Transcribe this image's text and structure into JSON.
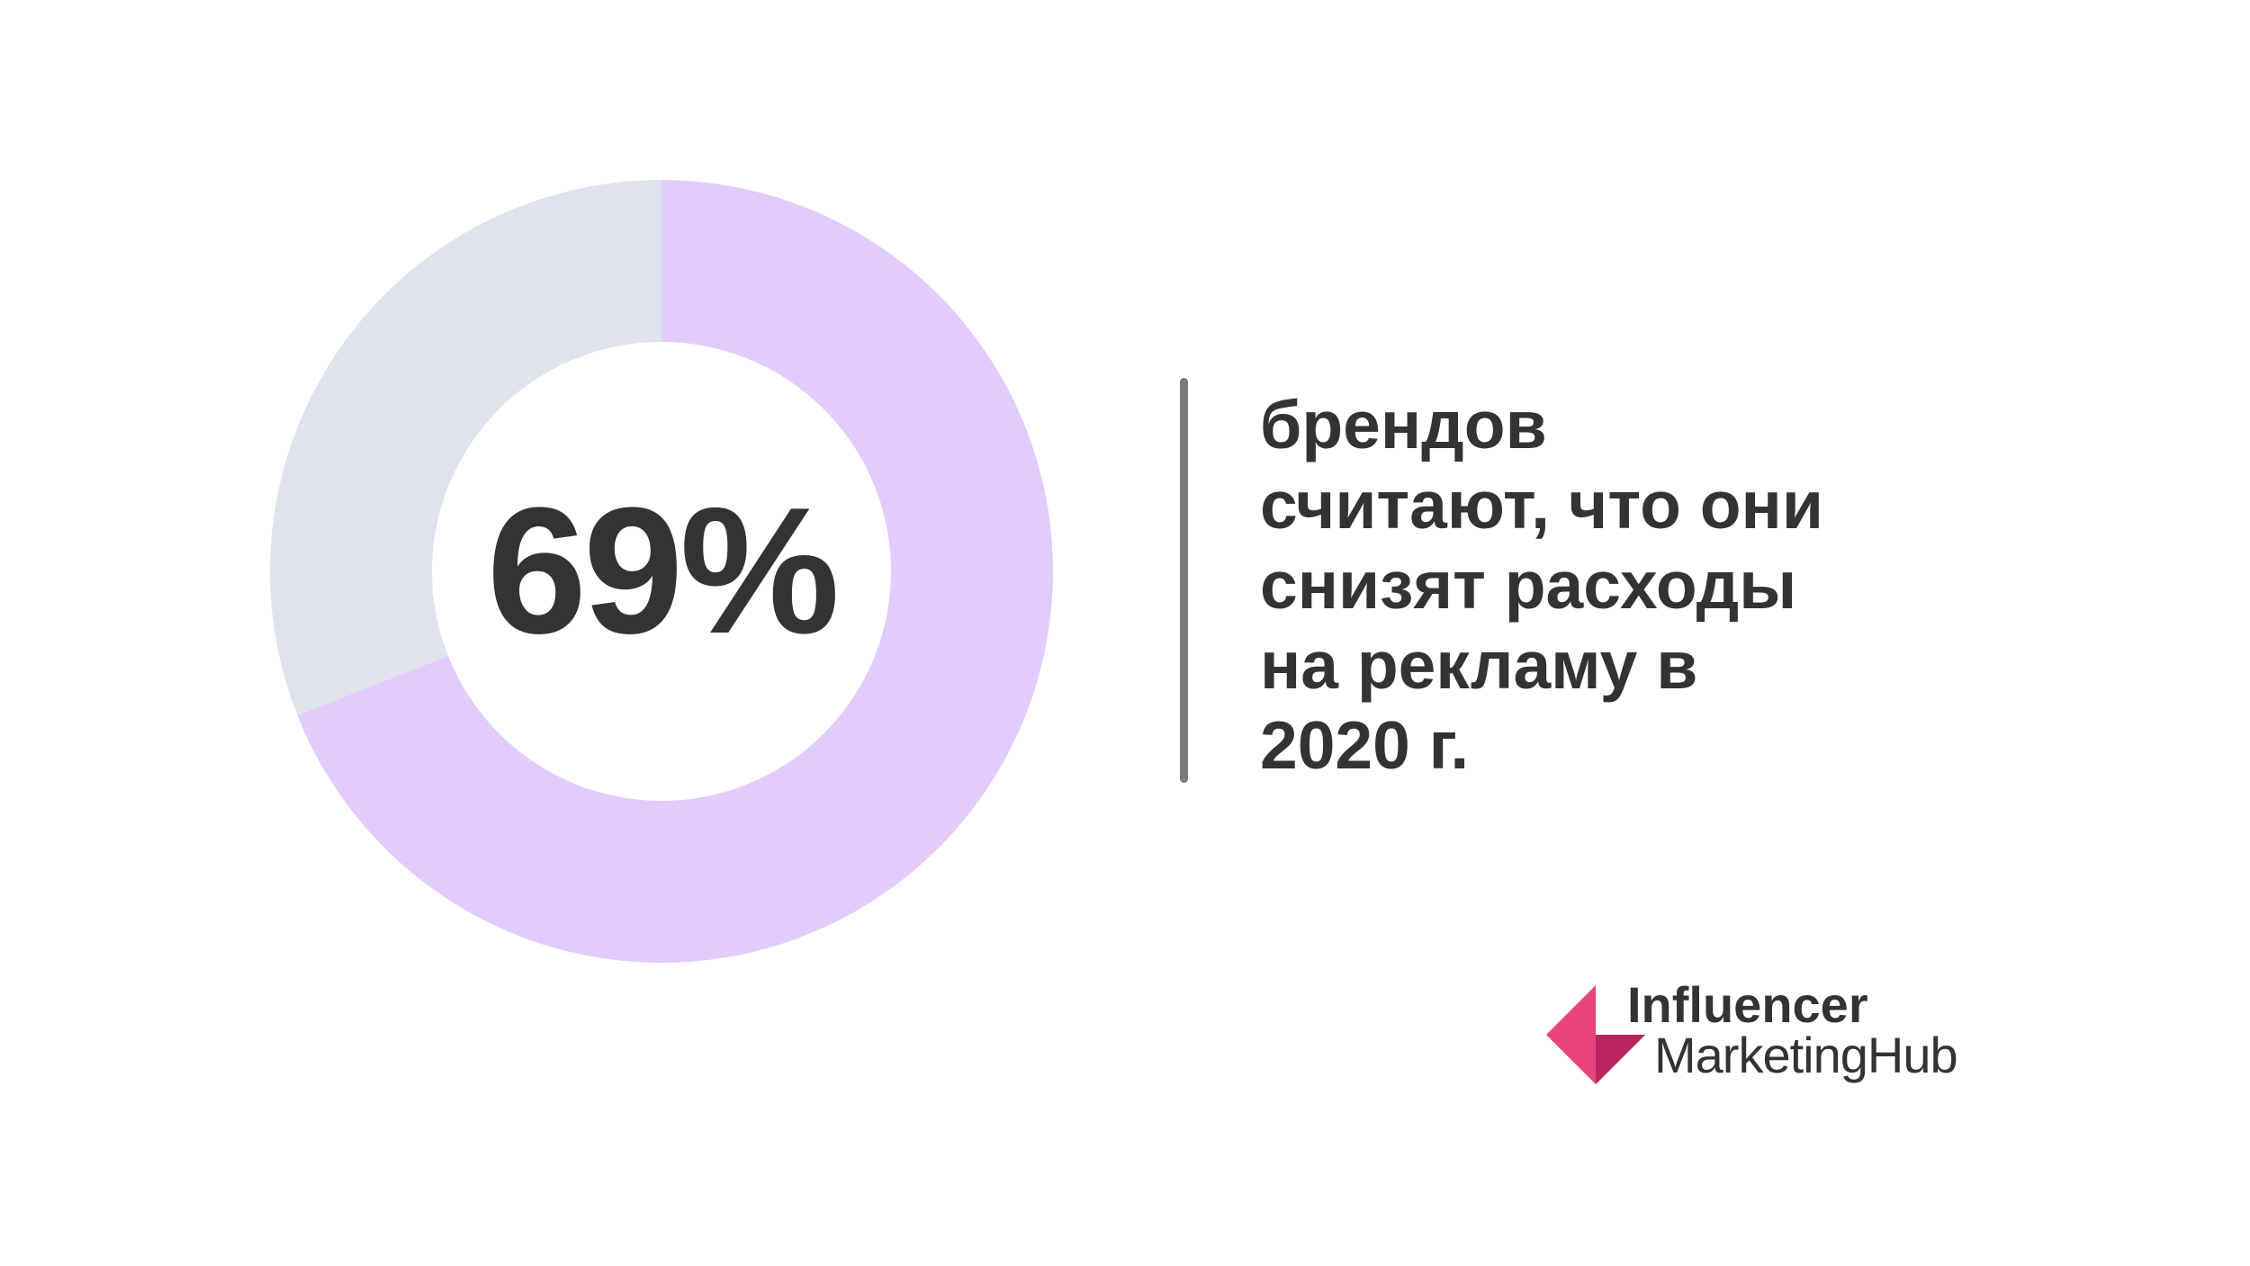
{
  "chart_data": {
    "type": "pie",
    "variant": "donut",
    "center_label": "69%",
    "slices": [
      {
        "value": 69,
        "color": "#e2ccfd"
      },
      {
        "value": 31,
        "color": "#dfe3ed"
      }
    ]
  },
  "caption": {
    "lines": [
      "брендов",
      "считают, что они",
      "снизят расходы",
      "на рекламу в",
      "2020 г."
    ]
  },
  "logo": {
    "line1": "Influencer",
    "line2": "MarketingHub",
    "colors": {
      "primary": "#e8457c",
      "secondary": "#b8245d",
      "text": "#333333"
    }
  }
}
